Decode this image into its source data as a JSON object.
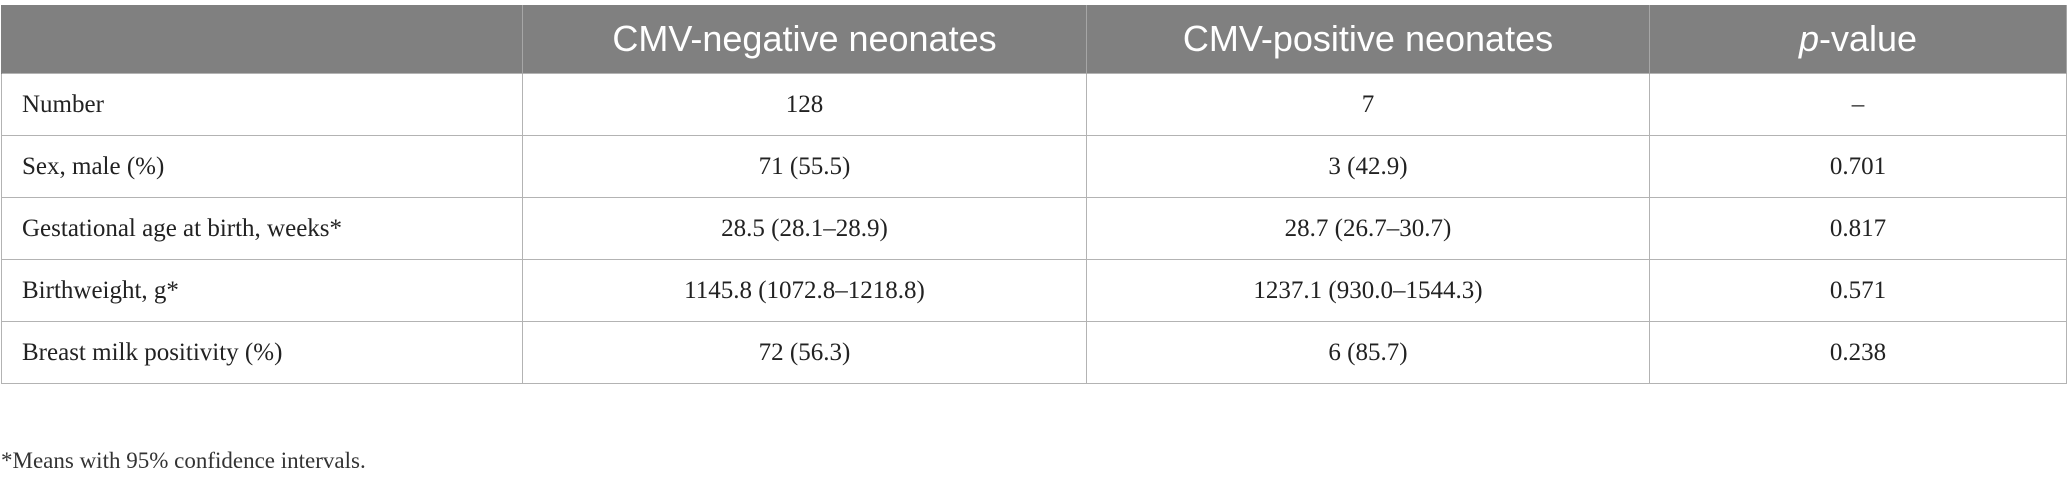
{
  "table": {
    "headers": {
      "col0": "",
      "col1": "CMV-negative neonates",
      "col2": "CMV-positive neonates",
      "col3_italic": "p",
      "col3_rest": "-value"
    },
    "rows": [
      {
        "label": "Number",
        "negative": "128",
        "positive": "7",
        "p_value": "–"
      },
      {
        "label": "Sex, male (%)",
        "negative": "71 (55.5)",
        "positive": "3 (42.9)",
        "p_value": "0.701"
      },
      {
        "label": "Gestational age at birth, weeks*",
        "negative": "28.5 (28.1–28.9)",
        "positive": "28.7 (26.7–30.7)",
        "p_value": "0.817"
      },
      {
        "label": "Birthweight, g*",
        "negative": "1145.8 (1072.8–1218.8)",
        "positive": "1237.1 (930.0–1544.3)",
        "p_value": "0.571"
      },
      {
        "label": "Breast milk positivity (%)",
        "negative": "72 (56.3)",
        "positive": "6 (85.7)",
        "p_value": "0.238"
      }
    ]
  },
  "footnote": "*Means with 95% confidence intervals."
}
